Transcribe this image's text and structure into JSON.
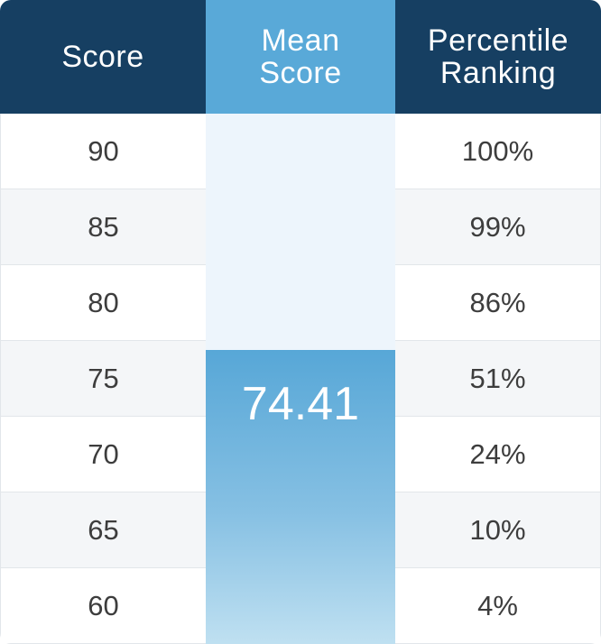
{
  "headers": {
    "score": "Score",
    "mean": [
      "Mean",
      "Score"
    ],
    "percentile": [
      "Percentile",
      "Ranking"
    ]
  },
  "mean_score": "74.41",
  "chart_data": {
    "type": "table",
    "columns": [
      "Score",
      "Mean Score",
      "Percentile Ranking"
    ],
    "rows": [
      {
        "score": "90",
        "percentile": "100%"
      },
      {
        "score": "85",
        "percentile": "99%"
      },
      {
        "score": "80",
        "percentile": "86%"
      },
      {
        "score": "75",
        "percentile": "51%"
      },
      {
        "score": "70",
        "percentile": "24%"
      },
      {
        "score": "65",
        "percentile": "10%"
      },
      {
        "score": "60",
        "percentile": "4%"
      }
    ],
    "mean_score": 74.41,
    "colors": {
      "header_dark": "#163f62",
      "header_accent": "#59a9d8",
      "mean_track": "#edf5fc",
      "mean_fill": "#57a7d7"
    }
  }
}
